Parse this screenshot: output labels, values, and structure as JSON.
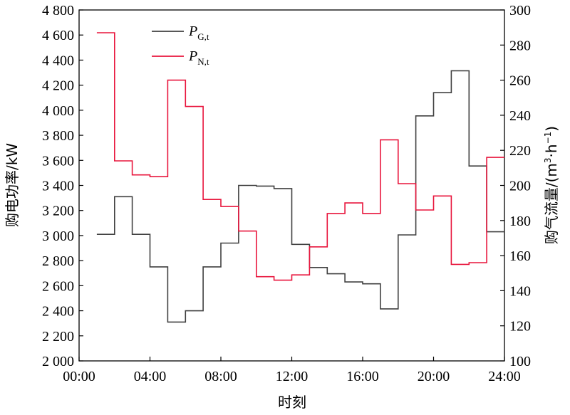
{
  "chart_data": {
    "type": "line",
    "step": "post",
    "xlabel": "时刻",
    "ylabel_left": "购电功率/kW",
    "ylabel_right_prefix": "购气流量/(m",
    "ylabel_right_sup1": "3",
    "ylabel_right_mid": "·h",
    "ylabel_right_sup2": "−1",
    "ylabel_right_suffix": ")",
    "xlim": [
      0,
      24
    ],
    "x_ticks": [
      0,
      4,
      8,
      12,
      16,
      20,
      24
    ],
    "x_tick_labels": [
      "00:00",
      "04:00",
      "08:00",
      "12:00",
      "16:00",
      "20:00",
      "24:00"
    ],
    "ylim_left": [
      2000,
      4800
    ],
    "left_ticks": [
      2000,
      2200,
      2400,
      2600,
      2800,
      3000,
      3200,
      3400,
      3600,
      3800,
      4000,
      4200,
      4400,
      4600,
      4800
    ],
    "left_tick_labels": [
      "2 000",
      "2 200",
      "2 400",
      "2 600",
      "2 800",
      "3 000",
      "3 200",
      "3 400",
      "3 600",
      "3 800",
      "4 000",
      "4 200",
      "4 400",
      "4 600",
      "4 800"
    ],
    "ylim_right": [
      100,
      300
    ],
    "right_ticks": [
      100,
      120,
      140,
      160,
      180,
      200,
      220,
      240,
      260,
      280,
      300
    ],
    "right_tick_labels": [
      "100",
      "120",
      "140",
      "160",
      "180",
      "200",
      "220",
      "240",
      "260",
      "280",
      "300"
    ],
    "grid": false,
    "legend_position": "top-left",
    "series": [
      {
        "name_main": "P",
        "name_sub": "G,t",
        "axis": "left",
        "color": "#404040",
        "x": [
          1,
          2,
          3,
          4,
          5,
          6,
          7,
          8,
          9,
          10,
          11,
          12,
          13,
          14,
          15,
          16,
          17,
          18,
          19,
          20,
          21,
          22,
          23,
          24
        ],
        "values": [
          3010,
          3310,
          3010,
          2750,
          2310,
          2400,
          2750,
          2940,
          3400,
          3395,
          3375,
          2930,
          2745,
          2695,
          2630,
          2615,
          2415,
          3005,
          3955,
          4140,
          4315,
          3555,
          3030,
          3030
        ]
      },
      {
        "name_main": "P",
        "name_sub": "N,t",
        "axis": "right",
        "color": "#e8153c",
        "x": [
          1,
          2,
          3,
          4,
          5,
          6,
          7,
          8,
          9,
          10,
          11,
          12,
          13,
          14,
          15,
          16,
          17,
          18,
          19,
          20,
          21,
          22,
          23,
          24
        ],
        "values": [
          287,
          214,
          206,
          205,
          260,
          245,
          192,
          188,
          174,
          148,
          146,
          149,
          165,
          184,
          190,
          184,
          226,
          201,
          186,
          194,
          155,
          156,
          216,
          216
        ]
      }
    ]
  }
}
